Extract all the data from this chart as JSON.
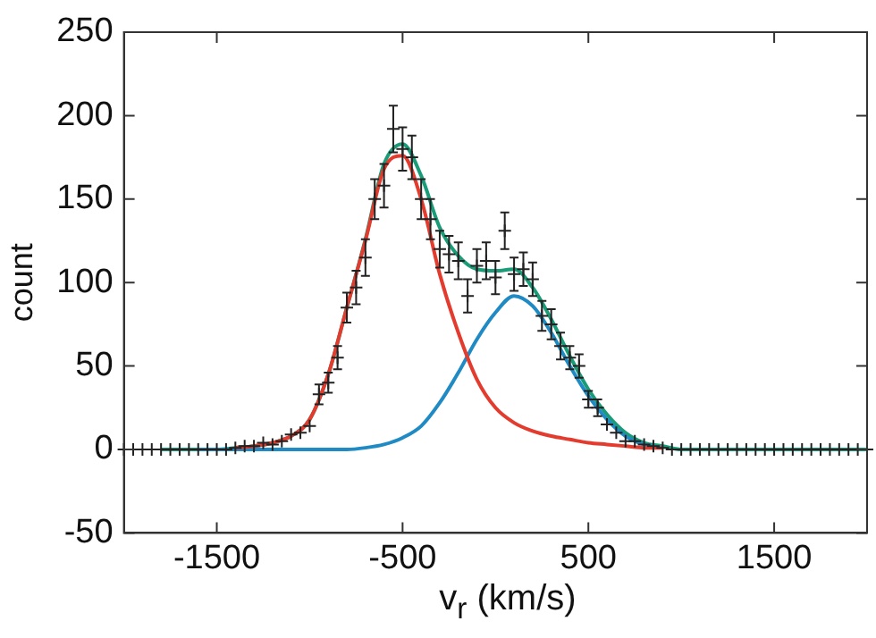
{
  "chart_data": {
    "type": "line",
    "xlabel": "v$_{r}$  (km/s)",
    "ylabel": "count",
    "xlim": [
      -2000,
      2000
    ],
    "xticks": [
      -1500,
      -500,
      500,
      1500
    ],
    "ylim": [
      -50,
      250
    ],
    "yticks": [
      -50,
      0,
      50,
      100,
      150,
      200,
      250
    ],
    "grid": false,
    "legend": false,
    "series": [
      {
        "type": "scatter",
        "marker": "cross",
        "color": "#222222",
        "x": [
          -2000,
          -1950,
          -1900,
          -1850,
          -1800,
          -1750,
          -1700,
          -1650,
          -1600,
          -1550,
          -1500,
          -1450,
          -1400,
          -1350,
          -1300,
          -1250,
          -1200,
          -1150,
          -1100,
          -1050,
          -1000,
          -950,
          -900,
          -850,
          -800,
          -750,
          -700,
          -650,
          -600,
          -550,
          -500,
          -450,
          -400,
          -350,
          -300,
          -250,
          -200,
          -150,
          -100,
          -50,
          0,
          50,
          100,
          150,
          200,
          250,
          300,
          350,
          400,
          450,
          500,
          550,
          600,
          650,
          700,
          750,
          800,
          850,
          900,
          950,
          1000,
          1050,
          1100,
          1150,
          1200,
          1250,
          1300,
          1350,
          1400,
          1450,
          1500,
          1550,
          1600,
          1650,
          1700,
          1750,
          1800,
          1850,
          1900,
          1950,
          2000
        ],
        "values": [
          0,
          0,
          0,
          0,
          0,
          0,
          0,
          0,
          0,
          0,
          0,
          0,
          1,
          2,
          2,
          4,
          3,
          5,
          9,
          10,
          14,
          33,
          40,
          55,
          85,
          97,
          115,
          150,
          158,
          192,
          180,
          175,
          150,
          138,
          120,
          117,
          113,
          92,
          110,
          113,
          103,
          131,
          105,
          108,
          102,
          80,
          75,
          62,
          55,
          50,
          30,
          25,
          15,
          10,
          5,
          5,
          3,
          2,
          1,
          0,
          0,
          0,
          0,
          0,
          0,
          0,
          0,
          0,
          0,
          0,
          0,
          0,
          0,
          0,
          0,
          0,
          0,
          0,
          0,
          0,
          0
        ],
        "errors": [
          null,
          null,
          null,
          null,
          null,
          null,
          null,
          null,
          null,
          null,
          null,
          null,
          null,
          null,
          null,
          null,
          null,
          null,
          null,
          null,
          null,
          6,
          6,
          7,
          9,
          10,
          11,
          12,
          13,
          14,
          13,
          13,
          12,
          12,
          11,
          11,
          11,
          10,
          10,
          11,
          10,
          11,
          10,
          10,
          10,
          9,
          9,
          8,
          7,
          7,
          5,
          5,
          null,
          null,
          null,
          null,
          null,
          null,
          null,
          null,
          null,
          null,
          null,
          null,
          null,
          null,
          null,
          null,
          null,
          null,
          null,
          null,
          null,
          null,
          null,
          null,
          null,
          null,
          null,
          null,
          null
        ]
      },
      {
        "type": "line",
        "color": "#e33b2e",
        "x": [
          -1400,
          -1300,
          -1200,
          -1100,
          -1000,
          -900,
          -800,
          -700,
          -600,
          -500,
          -400,
          -300,
          -200,
          -100,
          0,
          100,
          200,
          300,
          400,
          500,
          600,
          700,
          800,
          900
        ],
        "values": [
          1,
          2,
          4,
          8,
          18,
          45,
          85,
          125,
          168,
          176,
          150,
          105,
          70,
          42,
          25,
          16,
          11,
          8,
          6,
          4,
          3,
          2,
          1,
          1
        ]
      },
      {
        "type": "line",
        "color": "#1f8ac4",
        "x": [
          -1600,
          -1500,
          -1400,
          -1300,
          -1200,
          -1100,
          -1000,
          -900,
          -800,
          -700,
          -600,
          -500,
          -400,
          -300,
          -200,
          -100,
          0,
          100,
          200,
          300,
          400,
          500,
          600,
          700,
          800,
          900
        ],
        "values": [
          0,
          0,
          0,
          0,
          0,
          0,
          0,
          0,
          0,
          1,
          3,
          7,
          14,
          28,
          46,
          66,
          82,
          92,
          86,
          70,
          50,
          32,
          18,
          8,
          3,
          1
        ]
      },
      {
        "type": "line",
        "color": "#1a9c78",
        "x": [
          -1800,
          -1700,
          -1600,
          -1500,
          -1400,
          -1300,
          -1200,
          -1100,
          -1000,
          -900,
          -800,
          -700,
          -600,
          -500,
          -400,
          -300,
          -200,
          -100,
          0,
          100,
          200,
          300,
          400,
          500,
          600,
          700,
          800,
          900,
          1000,
          1100,
          1200,
          1300,
          1400,
          1500,
          1600,
          1700,
          1800,
          1900,
          2000
        ],
        "values": [
          0,
          0,
          0,
          0,
          1,
          2,
          4,
          8,
          18,
          45,
          85,
          126,
          171,
          183,
          164,
          133,
          116,
          108,
          107,
          108,
          97,
          78,
          56,
          36,
          21,
          10,
          4,
          2,
          0,
          0,
          0,
          0,
          0,
          0,
          0,
          0,
          0,
          0,
          0
        ]
      }
    ]
  }
}
